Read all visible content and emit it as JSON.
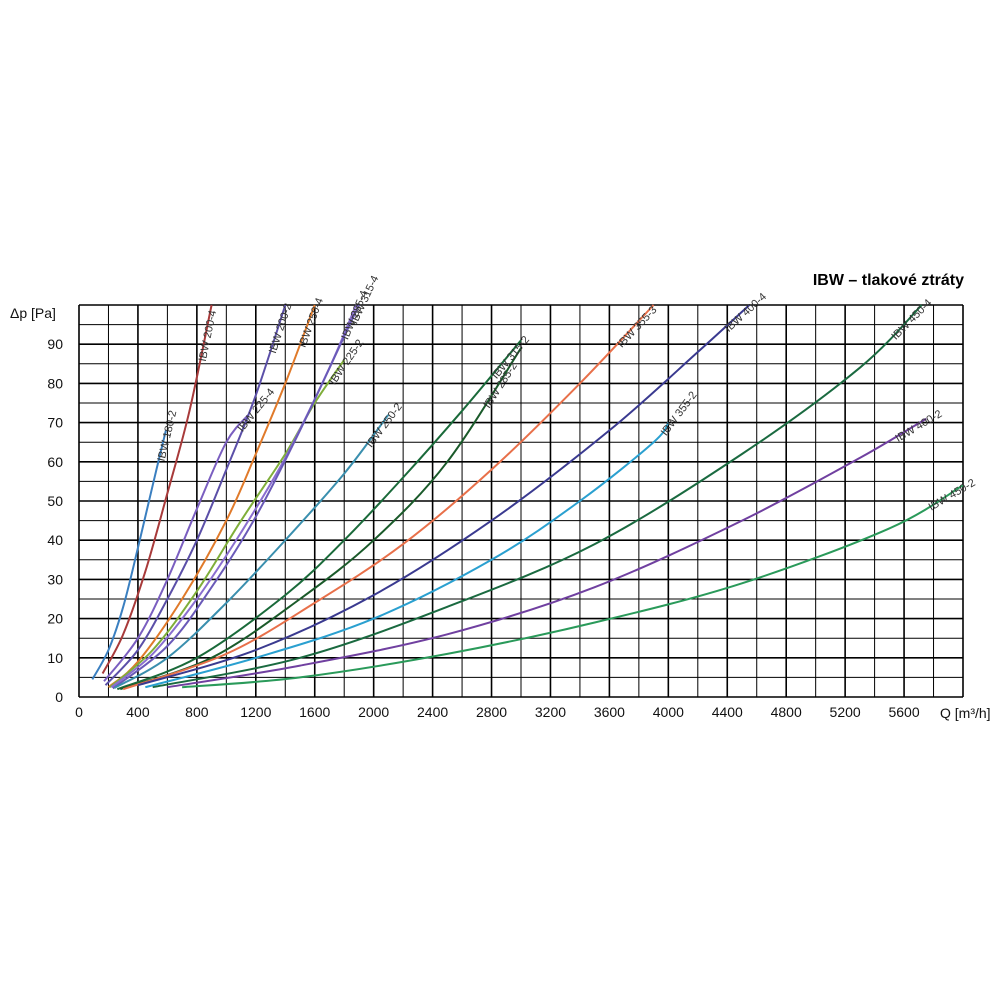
{
  "chart_data": {
    "type": "line",
    "title": "IBW – tlakové ztráty",
    "xlabel": "Q [m³/h]",
    "ylabel": "Δp [Pa]",
    "xlim": [
      0,
      6000
    ],
    "ylim": [
      0,
      100
    ],
    "x_ticks": [
      0,
      400,
      800,
      1200,
      1600,
      2000,
      2400,
      2800,
      3200,
      3600,
      4000,
      4400,
      4800,
      5200,
      5600
    ],
    "y_ticks": [
      0,
      10,
      20,
      30,
      40,
      50,
      60,
      70,
      80,
      90
    ],
    "grid": true,
    "legend": "none",
    "series": [
      {
        "name": "IBW 180-2",
        "color": "#3a7fc0",
        "points": [
          [
            90,
            4.5
          ],
          [
            200,
            12
          ],
          [
            300,
            23
          ],
          [
            400,
            38
          ],
          [
            500,
            54
          ],
          [
            590,
            68
          ]
        ]
      },
      {
        "name": "IBW 200-4",
        "color": "#a83a3a",
        "points": [
          [
            160,
            6
          ],
          [
            300,
            16
          ],
          [
            450,
            32
          ],
          [
            600,
            52
          ],
          [
            750,
            73
          ],
          [
            900,
            100
          ]
        ]
      },
      {
        "name": "IBW 225-4",
        "color": "#7a5ec0",
        "points": [
          [
            170,
            4
          ],
          [
            400,
            15
          ],
          [
            600,
            30
          ],
          [
            800,
            48
          ],
          [
            1000,
            65
          ],
          [
            1150,
            72
          ]
        ]
      },
      {
        "name": "IBW 200-2",
        "color": "#5b4fa8",
        "points": [
          [
            180,
            3
          ],
          [
            400,
            12
          ],
          [
            600,
            25
          ],
          [
            800,
            40
          ],
          [
            1000,
            58
          ],
          [
            1200,
            77
          ],
          [
            1400,
            100
          ]
        ]
      },
      {
        "name": "IBW 250-4",
        "color": "#e07a2a",
        "points": [
          [
            200,
            2.5
          ],
          [
            400,
            9
          ],
          [
            700,
            25
          ],
          [
            1000,
            45
          ],
          [
            1200,
            62
          ],
          [
            1400,
            80
          ],
          [
            1600,
            100
          ]
        ]
      },
      {
        "name": "IBW 225-2",
        "color": "#7fae3a",
        "points": [
          [
            210,
            2.5
          ],
          [
            500,
            12
          ],
          [
            800,
            27
          ],
          [
            1100,
            45
          ],
          [
            1400,
            62
          ],
          [
            1600,
            75
          ],
          [
            1800,
            86
          ]
        ]
      },
      {
        "name": "IBW 285-4",
        "color": "#8a6ed0",
        "points": [
          [
            220,
            2.5
          ],
          [
            500,
            11
          ],
          [
            800,
            25
          ],
          [
            1100,
            42
          ],
          [
            1400,
            61
          ],
          [
            1700,
            84
          ],
          [
            1880,
            100
          ]
        ]
      },
      {
        "name": "IBW 315-4",
        "color": "#6a5ab8",
        "points": [
          [
            230,
            2.2
          ],
          [
            600,
            13
          ],
          [
            900,
            28
          ],
          [
            1200,
            46
          ],
          [
            1500,
            68
          ],
          [
            1800,
            92
          ],
          [
            1900,
            100
          ]
        ]
      },
      {
        "name": "IBW 250-2",
        "color": "#3a8fae",
        "points": [
          [
            240,
            2.3
          ],
          [
            600,
            10
          ],
          [
            1000,
            24
          ],
          [
            1400,
            40
          ],
          [
            1800,
            57
          ],
          [
            2100,
            72
          ]
        ]
      },
      {
        "name": "IBW 315-2",
        "color": "#1a6a3a",
        "points": [
          [
            260,
            2
          ],
          [
            800,
            10
          ],
          [
            1400,
            26
          ],
          [
            1800,
            40
          ],
          [
            2200,
            56
          ],
          [
            2600,
            73
          ],
          [
            3000,
            91
          ]
        ]
      },
      {
        "name": "IBW 285-2",
        "color": "#1a5a2a",
        "points": [
          [
            280,
            2
          ],
          [
            900,
            10
          ],
          [
            1500,
            25
          ],
          [
            2000,
            40
          ],
          [
            2500,
            60
          ],
          [
            3000,
            89
          ]
        ]
      },
      {
        "name": "IBW 355-3",
        "color": "#e8704a",
        "points": [
          [
            300,
            2
          ],
          [
            1000,
            11
          ],
          [
            1600,
            24
          ],
          [
            2200,
            39
          ],
          [
            2800,
            58
          ],
          [
            3400,
            80
          ],
          [
            3900,
            100
          ]
        ]
      },
      {
        "name": "IBW 400-4",
        "color": "#3a3a90",
        "points": [
          [
            400,
            3
          ],
          [
            1200,
            12
          ],
          [
            2000,
            26
          ],
          [
            2800,
            45
          ],
          [
            3600,
            68
          ],
          [
            4200,
            88
          ],
          [
            4550,
            100
          ]
        ]
      },
      {
        "name": "IBW 355-2",
        "color": "#2aa0d0",
        "points": [
          [
            450,
            2.5
          ],
          [
            1200,
            10
          ],
          [
            2000,
            20
          ],
          [
            2800,
            35
          ],
          [
            3400,
            50
          ],
          [
            3900,
            65
          ],
          [
            4000,
            70
          ]
        ]
      },
      {
        "name": "IBW 450-4",
        "color": "#1a6a40",
        "points": [
          [
            500,
            2.5
          ],
          [
            1500,
            10
          ],
          [
            2500,
            23
          ],
          [
            3500,
            39
          ],
          [
            4500,
            62
          ],
          [
            5300,
            84
          ],
          [
            5720,
            100
          ]
        ]
      },
      {
        "name": "IBW 400-2",
        "color": "#7040a0",
        "points": [
          [
            600,
            2.5
          ],
          [
            1500,
            8
          ],
          [
            2500,
            16
          ],
          [
            3500,
            28
          ],
          [
            4500,
            45
          ],
          [
            5300,
            61
          ],
          [
            5750,
            71
          ]
        ]
      },
      {
        "name": "IBW 450-2",
        "color": "#2a9a5a",
        "points": [
          [
            700,
            2.5
          ],
          [
            1500,
            5
          ],
          [
            2500,
            11
          ],
          [
            3500,
            19
          ],
          [
            4500,
            29
          ],
          [
            5500,
            43
          ],
          [
            6000,
            54
          ]
        ]
      }
    ]
  }
}
